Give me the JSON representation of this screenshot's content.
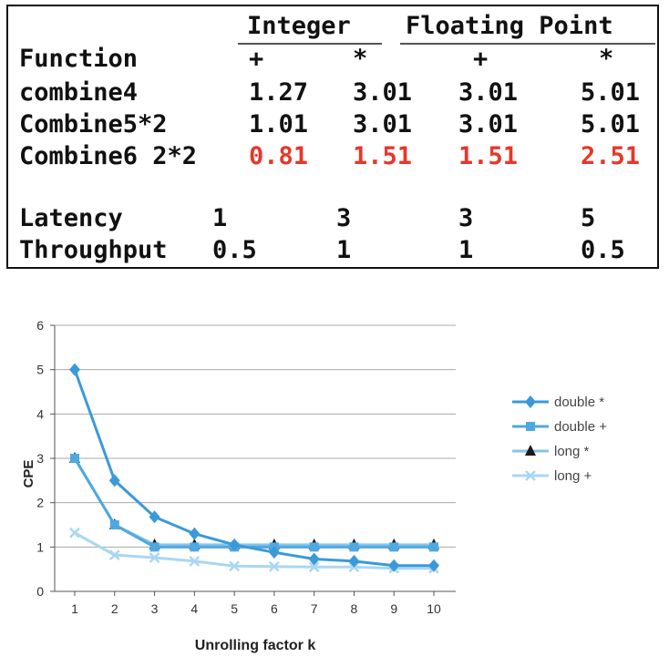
{
  "table": {
    "group_headers": [
      "Integer",
      "Floating Point"
    ],
    "column_headers": [
      "Function",
      "+",
      "*",
      "+",
      "*"
    ],
    "rows": [
      {
        "label": "combine4",
        "values": [
          "1.27",
          "3.01",
          "3.01",
          "5.01"
        ],
        "highlight": false
      },
      {
        "label": "Combine5*2",
        "values": [
          "1.01",
          "3.01",
          "3.01",
          "5.01"
        ],
        "highlight": false
      },
      {
        "label": "Combine6 2*2",
        "values": [
          "0.81",
          "1.51",
          "1.51",
          "2.51"
        ],
        "highlight": true
      }
    ],
    "latency": {
      "label": "Latency",
      "values": [
        "1",
        "3",
        "3",
        "5"
      ]
    },
    "throughput": {
      "label": "Throughput",
      "values": [
        "0.5",
        "1",
        "1",
        "0.5"
      ]
    },
    "highlight_color": "#e8362a"
  },
  "chart_data": {
    "type": "line",
    "xlabel": "Unrolling factor k",
    "ylabel": "CPE",
    "xlim": [
      1,
      10
    ],
    "ylim": [
      0,
      6
    ],
    "x": [
      1,
      2,
      3,
      4,
      5,
      6,
      7,
      8,
      9,
      10
    ],
    "yticks": [
      0,
      1,
      2,
      3,
      4,
      5,
      6
    ],
    "grid": "horizontal",
    "legend_position": "right",
    "series": [
      {
        "name": "double *",
        "marker": "diamond",
        "color": "#3a9ad9",
        "values": [
          5.0,
          2.5,
          1.68,
          1.3,
          1.05,
          0.88,
          0.73,
          0.68,
          0.58,
          0.58
        ]
      },
      {
        "name": "double +",
        "marker": "square",
        "color": "#4fa8e0",
        "values": [
          3.0,
          1.5,
          1.0,
          1.0,
          1.0,
          1.0,
          1.0,
          1.0,
          1.0,
          1.0
        ]
      },
      {
        "name": "long *",
        "marker": "triangle",
        "color": "#86c5ea",
        "values": [
          3.0,
          1.5,
          1.05,
          1.05,
          1.05,
          1.05,
          1.05,
          1.05,
          1.05,
          1.05
        ]
      },
      {
        "name": "long +",
        "marker": "x",
        "color": "#a9d7f3",
        "values": [
          1.32,
          0.82,
          0.76,
          0.68,
          0.57,
          0.56,
          0.55,
          0.55,
          0.52,
          0.52
        ]
      }
    ]
  }
}
